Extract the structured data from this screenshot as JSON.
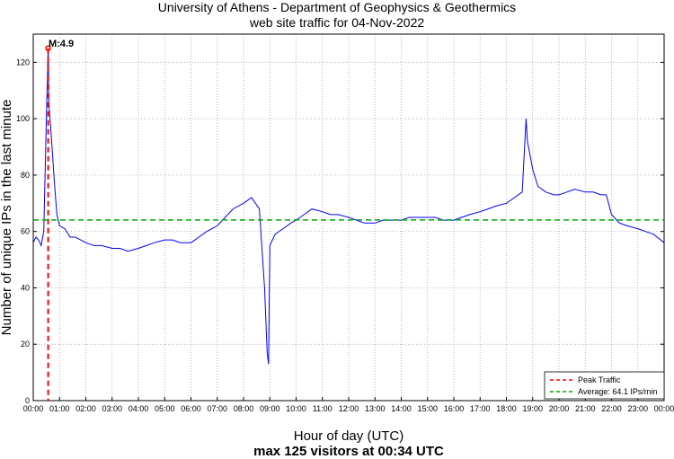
{
  "chart_data": {
    "type": "line",
    "title": "University of Athens - Department of Geophysics & Geothermics",
    "subtitle": "web site traffic for 04-Nov-2022",
    "xlabel": "Hour of day (UTC)",
    "ylabel": "Number of unique IPs in the last minute",
    "footer": "max 125 visitors at 00:34 UTC",
    "xlim": [
      0,
      24
    ],
    "ylim": [
      0,
      130
    ],
    "grid": true,
    "x_ticks": [
      "00:00",
      "01:00",
      "02:00",
      "03:00",
      "04:00",
      "05:00",
      "06:00",
      "07:00",
      "08:00",
      "09:00",
      "10:00",
      "11:00",
      "12:00",
      "13:00",
      "14:00",
      "15:00",
      "16:00",
      "17:00",
      "18:00",
      "19:00",
      "20:00",
      "21:00",
      "22:00",
      "23:00",
      "00:00"
    ],
    "y_ticks": [
      0,
      20,
      40,
      60,
      80,
      100,
      120
    ],
    "series": [
      {
        "name": "traffic",
        "color": "#0000ff",
        "x_hours": [
          0.0,
          0.1,
          0.2,
          0.3,
          0.4,
          0.5,
          0.567,
          0.6,
          0.7,
          0.8,
          0.9,
          1.0,
          1.2,
          1.4,
          1.6,
          1.8,
          2.0,
          2.3,
          2.6,
          3.0,
          3.3,
          3.6,
          4.0,
          4.3,
          4.6,
          5.0,
          5.3,
          5.6,
          6.0,
          6.3,
          6.6,
          7.0,
          7.3,
          7.6,
          8.0,
          8.3,
          8.6,
          8.8,
          8.9,
          8.95,
          9.0,
          9.2,
          9.5,
          9.8,
          10.0,
          10.3,
          10.6,
          11.0,
          11.3,
          11.6,
          12.0,
          12.3,
          12.6,
          13.0,
          13.3,
          13.6,
          14.0,
          14.3,
          14.6,
          15.0,
          15.3,
          15.6,
          16.0,
          16.3,
          16.6,
          17.0,
          17.3,
          17.6,
          18.0,
          18.3,
          18.6,
          18.75,
          18.8,
          19.0,
          19.2,
          19.5,
          19.8,
          20.0,
          20.3,
          20.6,
          21.0,
          21.3,
          21.6,
          21.8,
          22.0,
          22.3,
          22.6,
          23.0,
          23.3,
          23.6,
          24.0
        ],
        "values": [
          56,
          58,
          57,
          55,
          60,
          100,
          125,
          105,
          92,
          78,
          66,
          62,
          61,
          58,
          58,
          57,
          56,
          55,
          55,
          54,
          54,
          53,
          54,
          55,
          56,
          57,
          57,
          56,
          56,
          58,
          60,
          62,
          65,
          68,
          70,
          72,
          68,
          40,
          17,
          13,
          55,
          59,
          61,
          63,
          64,
          66,
          68,
          67,
          66,
          66,
          65,
          64,
          63,
          63,
          64,
          64,
          64,
          65,
          65,
          65,
          65,
          64,
          64,
          65,
          66,
          67,
          68,
          69,
          70,
          72,
          74,
          100,
          92,
          82,
          76,
          74,
          73,
          73,
          74,
          75,
          74,
          74,
          73,
          73,
          66,
          63,
          62,
          61,
          60,
          59,
          56
        ]
      }
    ],
    "reference_lines": [
      {
        "name": "Peak Traffic",
        "axis": "x",
        "value_hours": 0.567,
        "color": "#ff0000",
        "style": "dashed"
      },
      {
        "name": "Average: 64.1 IPs/min",
        "axis": "y",
        "value": 64.1,
        "color": "#00aa00",
        "style": "dashed"
      }
    ],
    "annotations": [
      {
        "text": "M:4.9",
        "x_hours": 0.567,
        "y": 125
      }
    ],
    "legend_position": "bottom-right"
  }
}
